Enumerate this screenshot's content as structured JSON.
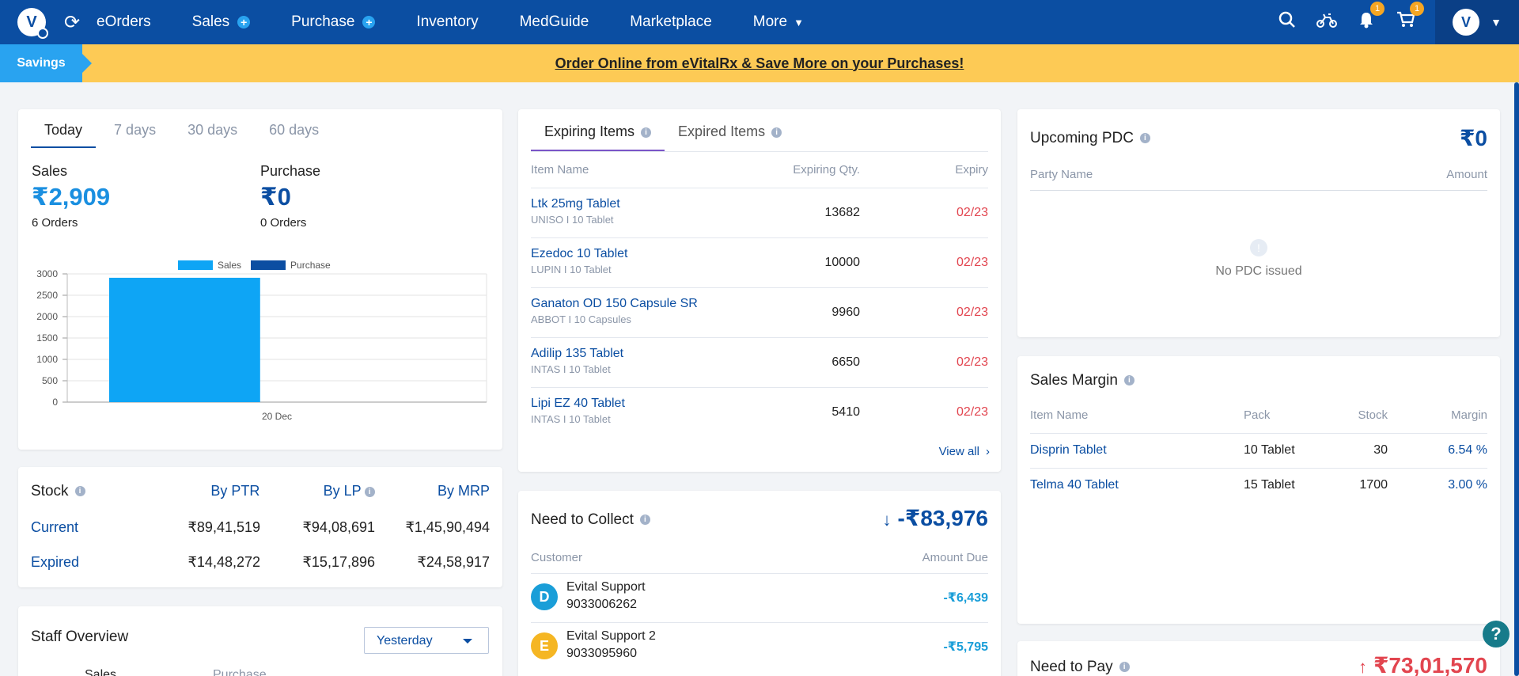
{
  "nav": {
    "logo_letter": "V",
    "items": [
      {
        "label": "eOrders"
      },
      {
        "label": "Sales"
      },
      {
        "label": "Purchase"
      },
      {
        "label": "Inventory"
      },
      {
        "label": "MedGuide"
      },
      {
        "label": "Marketplace"
      },
      {
        "label": "More"
      }
    ],
    "notification_count": "1",
    "cart_count": "1",
    "avatar_letter": "V"
  },
  "banner": {
    "tag": "Savings",
    "text": "Order Online from eVitalRx & Save More on your Purchases!"
  },
  "summary": {
    "tabs": [
      "Today",
      "7 days",
      "30 days",
      "60 days"
    ],
    "sales_label": "Sales",
    "sales_value": "₹2,909",
    "sales_orders": "6 Orders",
    "purchase_label": "Purchase",
    "purchase_value": "₹0",
    "purchase_orders": "0 Orders"
  },
  "chart_data": {
    "type": "bar",
    "categories": [
      "20 Dec"
    ],
    "series": [
      {
        "name": "Sales",
        "values": [
          2909
        ],
        "color": "#0ea5f5"
      },
      {
        "name": "Purchase",
        "values": [
          0
        ],
        "color": "#0b4ea2"
      }
    ],
    "yticks": [
      0,
      500,
      1000,
      1500,
      2000,
      2500,
      3000
    ],
    "ylim": [
      0,
      3000
    ],
    "legend": "top",
    "grid": true
  },
  "stock": {
    "title": "Stock",
    "cols": [
      "By PTR",
      "By LP",
      "By MRP"
    ],
    "rows": [
      {
        "label": "Current",
        "values": [
          "₹89,41,519",
          "₹94,08,691",
          "₹1,45,90,494"
        ]
      },
      {
        "label": "Expired",
        "values": [
          "₹14,48,272",
          "₹15,17,896",
          "₹24,58,917"
        ]
      }
    ]
  },
  "staff": {
    "title": "Staff Overview",
    "select": "Yesterday",
    "col1": "Sales",
    "col2": "Purchase"
  },
  "expiring": {
    "tabs": [
      "Expiring Items",
      "Expired Items"
    ],
    "headers": [
      "Item Name",
      "Expiring Qty.",
      "Expiry"
    ],
    "rows": [
      {
        "name": "Ltk 25mg Tablet",
        "sub": "UNISO  I  10 Tablet",
        "qty": "13682",
        "expiry": "02/23"
      },
      {
        "name": "Ezedoc 10 Tablet",
        "sub": "LUPIN  I  10 Tablet",
        "qty": "10000",
        "expiry": "02/23"
      },
      {
        "name": "Ganaton OD 150 Capsule SR",
        "sub": "ABBOT  I  10 Capsules",
        "qty": "9960",
        "expiry": "02/23"
      },
      {
        "name": "Adilip 135 Tablet",
        "sub": "INTAS  I  10 Tablet",
        "qty": "6650",
        "expiry": "02/23"
      },
      {
        "name": "Lipi EZ 40 Tablet",
        "sub": "INTAS  I  10 Tablet",
        "qty": "5410",
        "expiry": "02/23"
      }
    ],
    "view_all": "View all"
  },
  "collect": {
    "title": "Need to Collect",
    "total": "-₹83,976",
    "headers": [
      "Customer",
      "Amount Due"
    ],
    "rows": [
      {
        "initial": "D",
        "name": "Evital Support",
        "phone": "9033006262",
        "amount": "-₹6,439",
        "color": "#1a9ed8"
      },
      {
        "initial": "E",
        "name": "Evital Support 2",
        "phone": "9033095960",
        "amount": "-₹5,795",
        "color": "#f5b623"
      }
    ]
  },
  "pdc": {
    "title": "Upcoming PDC",
    "total": "₹0",
    "headers": [
      "Party Name",
      "Amount"
    ],
    "empty": "No PDC issued"
  },
  "margin": {
    "title": "Sales Margin",
    "headers": [
      "Item Name",
      "Pack",
      "Stock",
      "Margin"
    ],
    "rows": [
      {
        "name": "Disprin Tablet",
        "pack": "10 Tablet",
        "stock": "30",
        "margin": "6.54 %"
      },
      {
        "name": "Telma 40 Tablet",
        "pack": "15 Tablet",
        "stock": "1700",
        "margin": "3.00 %"
      }
    ]
  },
  "pay": {
    "title": "Need to Pay",
    "total": "₹73,01,570"
  },
  "help": "?"
}
